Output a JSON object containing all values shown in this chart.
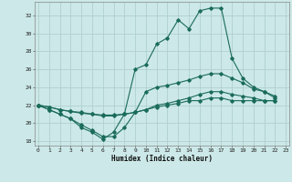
{
  "xlabel": "Humidex (Indice chaleur)",
  "bg_color": "#cce8e8",
  "grid_color": "#b0d0d0",
  "line_color": "#1a6b5a",
  "x_ticks": [
    0,
    1,
    2,
    3,
    4,
    5,
    6,
    7,
    8,
    9,
    10,
    11,
    12,
    13,
    14,
    15,
    16,
    17,
    18,
    19,
    20,
    21,
    22,
    23
  ],
  "y_ticks": [
    18,
    20,
    22,
    24,
    26,
    28,
    30,
    32
  ],
  "xlim": [
    -0.3,
    23.3
  ],
  "ylim": [
    17.5,
    33.5
  ],
  "series": [
    [
      22.0,
      21.5,
      21.0,
      20.5,
      19.5,
      19.0,
      18.2,
      19.0,
      21.0,
      26.0,
      26.5,
      28.8,
      29.5,
      31.5,
      30.5,
      32.5,
      32.8,
      32.8,
      27.2,
      25.0,
      24.0,
      23.5,
      22.8
    ],
    [
      22.0,
      21.5,
      21.0,
      20.5,
      19.8,
      19.2,
      18.5,
      18.5,
      19.5,
      21.2,
      23.5,
      24.0,
      24.2,
      24.5,
      24.8,
      25.2,
      25.5,
      25.5,
      25.0,
      24.5,
      23.8,
      23.5,
      23.0
    ],
    [
      22.0,
      21.8,
      21.5,
      21.3,
      21.1,
      21.0,
      20.8,
      20.8,
      21.0,
      21.2,
      21.5,
      22.0,
      22.2,
      22.5,
      22.8,
      23.2,
      23.5,
      23.5,
      23.2,
      23.0,
      22.8,
      22.5,
      22.5
    ],
    [
      22.0,
      21.8,
      21.5,
      21.3,
      21.2,
      21.0,
      20.9,
      20.9,
      21.0,
      21.2,
      21.5,
      21.8,
      22.0,
      22.2,
      22.5,
      22.5,
      22.8,
      22.8,
      22.5,
      22.5,
      22.5,
      22.5,
      22.5
    ]
  ],
  "series_x": [
    [
      0,
      1,
      2,
      3,
      4,
      5,
      6,
      7,
      8,
      9,
      10,
      11,
      12,
      13,
      14,
      15,
      16,
      17,
      18,
      19,
      20,
      21,
      22
    ],
    [
      0,
      1,
      2,
      3,
      4,
      5,
      6,
      7,
      8,
      9,
      10,
      11,
      12,
      13,
      14,
      15,
      16,
      17,
      18,
      19,
      20,
      21,
      22
    ],
    [
      0,
      1,
      2,
      3,
      4,
      5,
      6,
      7,
      8,
      9,
      10,
      11,
      12,
      13,
      14,
      15,
      16,
      17,
      18,
      19,
      20,
      21,
      22
    ],
    [
      0,
      1,
      2,
      3,
      4,
      5,
      6,
      7,
      8,
      9,
      10,
      11,
      12,
      13,
      14,
      15,
      16,
      17,
      18,
      19,
      20,
      21,
      22
    ]
  ]
}
